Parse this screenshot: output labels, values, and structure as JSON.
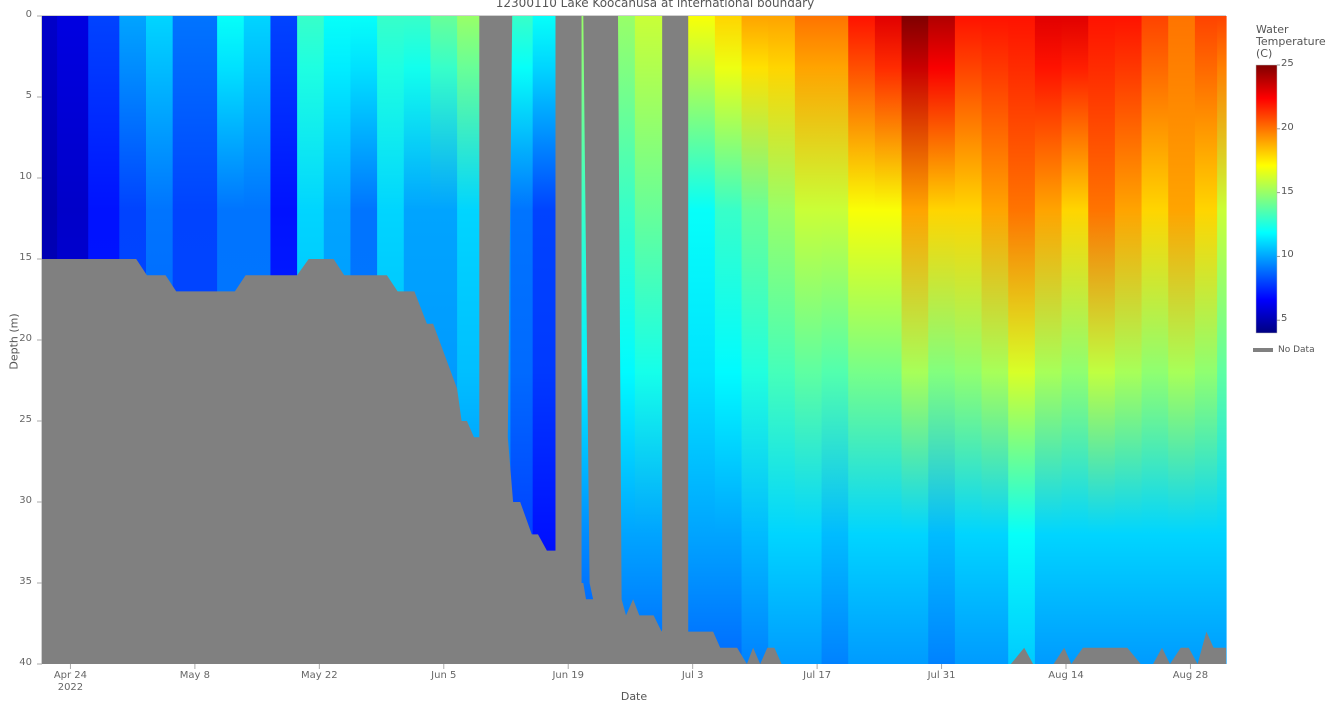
{
  "chart_data": {
    "type": "heatmap",
    "title": "12300110 Lake Koocanusa at international boundary",
    "xlabel": "Date",
    "ylabel": "Depth (m)",
    "x_ticks": [
      {
        "label": "Apr 24",
        "sub": "2022",
        "day": 0
      },
      {
        "label": "May 8",
        "sub": "",
        "day": 14
      },
      {
        "label": "May 22",
        "sub": "",
        "day": 28
      },
      {
        "label": "Jun 5",
        "sub": "",
        "day": 42
      },
      {
        "label": "Jun 19",
        "sub": "",
        "day": 56
      },
      {
        "label": "Jul 3",
        "sub": "",
        "day": 70
      },
      {
        "label": "Jul 17",
        "sub": "",
        "day": 84
      },
      {
        "label": "Jul 31",
        "sub": "",
        "day": 98
      },
      {
        "label": "Aug 14",
        "sub": "",
        "day": 112
      },
      {
        "label": "Aug 28",
        "sub": "",
        "day": 126
      }
    ],
    "y_ticks": [
      0,
      5,
      10,
      15,
      20,
      25,
      30,
      35,
      40
    ],
    "ylim": [
      40,
      0
    ],
    "xlim_days": [
      -3.2,
      130.0
    ],
    "colorbar": {
      "title": "Water Temperature (C)",
      "min": 4,
      "max": 25,
      "ticks": [
        5,
        10,
        15,
        20,
        25
      ],
      "colorscale": "Jet",
      "stops": [
        "#000080",
        "#0000ff",
        "#0080ff",
        "#00ffff",
        "#80ff80",
        "#ffff00",
        "#ff8000",
        "#ff0000",
        "#800000"
      ]
    },
    "legend": [
      {
        "label": "No Data",
        "color": "#808080"
      }
    ],
    "no_data_color": "#808080",
    "columns_day": [
      -3,
      0,
      4,
      7,
      10,
      13,
      15,
      18,
      21,
      24,
      27,
      30,
      33,
      36,
      39,
      42,
      45,
      48,
      51,
      53,
      56,
      59,
      62,
      65,
      68,
      71,
      74,
      77,
      80,
      83,
      86,
      89,
      92,
      95,
      98,
      101,
      104,
      107,
      110,
      113,
      116,
      119,
      122,
      125,
      128,
      130
    ],
    "columns_surface_C": [
      5.5,
      6,
      8,
      10,
      11,
      9,
      9,
      12,
      11,
      8,
      13,
      12,
      12,
      13,
      13,
      14,
      15,
      14,
      13,
      12,
      null,
      15,
      15,
      16,
      null,
      17,
      18,
      19,
      19,
      20,
      20,
      22,
      23,
      25,
      24,
      22,
      22,
      22,
      23,
      23,
      22,
      22,
      21,
      20,
      21,
      21
    ],
    "columns_mid_C": [
      5,
      5.5,
      7,
      8,
      9,
      8,
      8,
      9,
      9,
      7,
      11,
      10,
      9,
      11,
      10,
      10,
      11,
      10,
      9,
      8,
      null,
      13,
      13,
      14,
      null,
      12,
      13,
      14,
      15,
      16,
      16,
      17,
      17,
      19,
      18,
      18,
      19,
      20,
      19,
      18,
      20,
      19,
      18,
      19,
      18,
      16
    ],
    "columns_deep_C": [
      5,
      5.5,
      6.5,
      7.5,
      8,
      7.5,
      7.5,
      8.5,
      8.5,
      7,
      9.5,
      9,
      8.5,
      9.5,
      9,
      9,
      9.5,
      9,
      8,
      7,
      null,
      9.5,
      10,
      10,
      null,
      10,
      10,
      10.5,
      11,
      11,
      10.5,
      11,
      11,
      11,
      10.5,
      11,
      11,
      12,
      11,
      11,
      11,
      11,
      11,
      11,
      11,
      11
    ],
    "bottom_depth_m": [
      [
        -3.2,
        15
      ],
      [
        7.4,
        15
      ],
      [
        8.6,
        16
      ],
      [
        10.7,
        16
      ],
      [
        11.9,
        17
      ],
      [
        18.5,
        17
      ],
      [
        19.7,
        16
      ],
      [
        25.5,
        16
      ],
      [
        26.8,
        15
      ],
      [
        29.6,
        15
      ],
      [
        30.8,
        16
      ],
      [
        35.6,
        16
      ],
      [
        36.8,
        17
      ],
      [
        38.7,
        17
      ],
      [
        40.1,
        19
      ],
      [
        40.8,
        19
      ],
      [
        43.5,
        23
      ],
      [
        44.0,
        25
      ],
      [
        44.6,
        25
      ],
      [
        45.4,
        26
      ],
      [
        46.0,
        26
      ],
      [
        46.0,
        0
      ],
      [
        49.7,
        0
      ],
      [
        49.2,
        26
      ],
      [
        49.8,
        30
      ],
      [
        50.6,
        30
      ],
      [
        51.9,
        32
      ],
      [
        52.6,
        32
      ],
      [
        53.6,
        33
      ],
      [
        55.3,
        33
      ],
      [
        57.1,
        35
      ],
      [
        57.7,
        35
      ],
      [
        58.0,
        36
      ],
      [
        58.8,
        36
      ],
      [
        58.4,
        35
      ],
      [
        57.7,
        0
      ],
      [
        61.6,
        0
      ],
      [
        62.0,
        36
      ],
      [
        62.5,
        37
      ],
      [
        63.3,
        36
      ],
      [
        64.0,
        37
      ],
      [
        65.6,
        37
      ],
      [
        66.5,
        38
      ],
      [
        67.2,
        37
      ],
      [
        68.0,
        38
      ],
      [
        72.3,
        38
      ],
      [
        73.1,
        39
      ],
      [
        75.0,
        39
      ],
      [
        76.1,
        40
      ],
      [
        76.8,
        39
      ],
      [
        77.6,
        40
      ],
      [
        78.4,
        39
      ],
      [
        79.2,
        39
      ],
      [
        80.0,
        40
      ],
      [
        105.8,
        40
      ],
      [
        107.3,
        39
      ],
      [
        108.3,
        40
      ],
      [
        110.6,
        40
      ],
      [
        111.8,
        39
      ],
      [
        112.6,
        40
      ],
      [
        113.9,
        39
      ],
      [
        118.9,
        39
      ],
      [
        120.4,
        40
      ],
      [
        121.8,
        40
      ],
      [
        122.8,
        39
      ],
      [
        123.7,
        40
      ],
      [
        124.9,
        39
      ],
      [
        125.8,
        39
      ],
      [
        126.8,
        40
      ],
      [
        127.8,
        38
      ],
      [
        128.6,
        39
      ],
      [
        130.0,
        39
      ]
    ]
  }
}
